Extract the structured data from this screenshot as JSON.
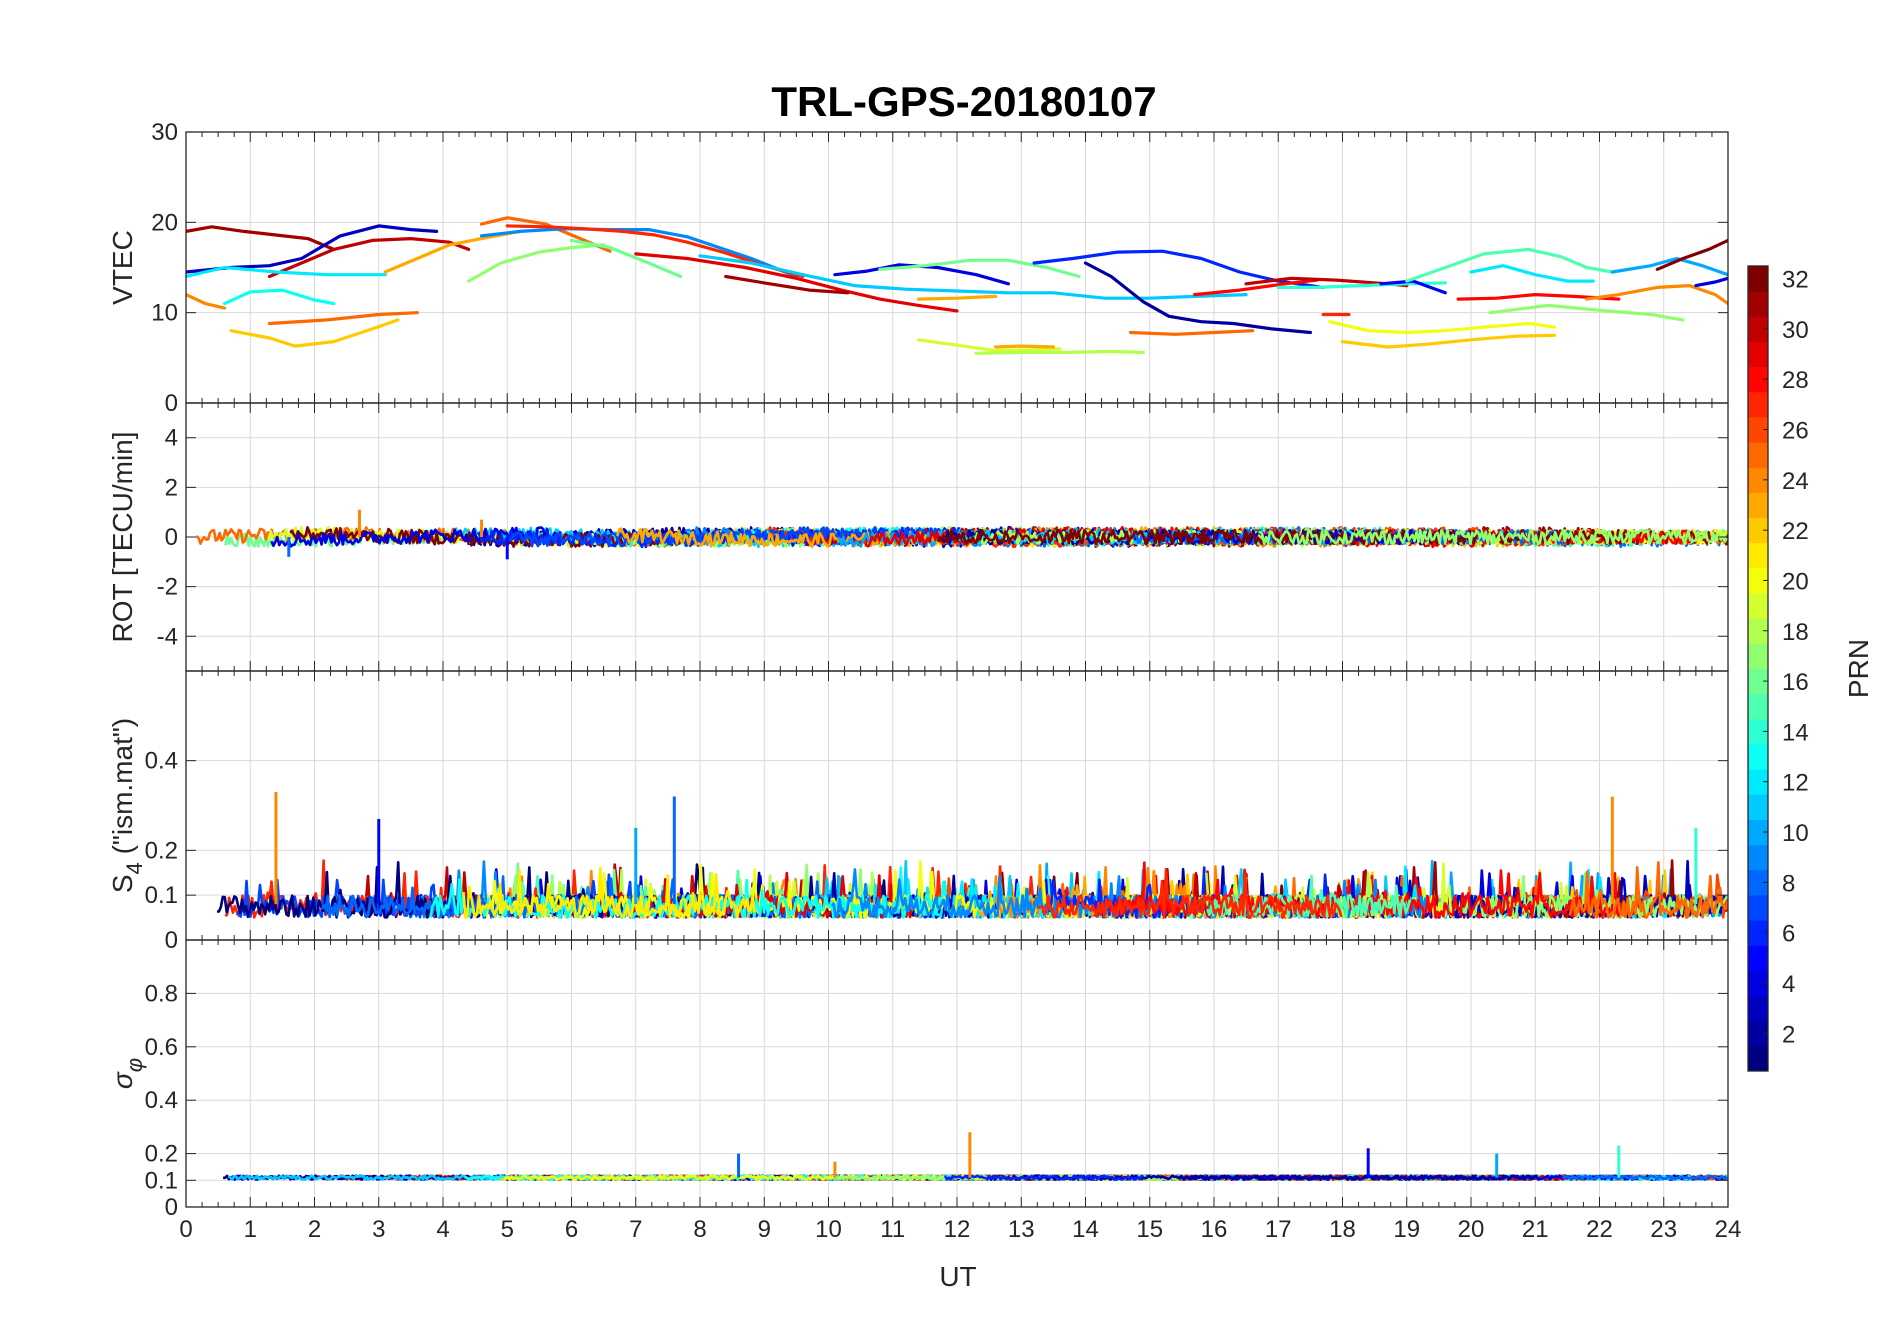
{
  "chart_data": {
    "title": "TRL-GPS-20180107",
    "xlabel": "UT",
    "xlim": [
      0,
      24
    ],
    "xticks": [
      0,
      1,
      2,
      3,
      4,
      5,
      6,
      7,
      8,
      9,
      10,
      11,
      12,
      13,
      14,
      15,
      16,
      17,
      18,
      19,
      20,
      21,
      22,
      23,
      24
    ],
    "panels": [
      {
        "id": "vtec",
        "type": "line",
        "ylabel": "VTEC",
        "ylim": [
          0,
          30
        ],
        "yticks": [
          0,
          10,
          20,
          30
        ],
        "series": [
          {
            "prn": 31,
            "x": [
              0,
              0.4,
              0.9,
              1.4,
              1.9,
              2.3
            ],
            "y": [
              19,
              19.5,
              19,
              18.6,
              18.2,
              17
            ]
          },
          {
            "prn": 30,
            "x": [
              1.3,
              1.8,
              2.3,
              2.9,
              3.5,
              4.1,
              4.4
            ],
            "y": [
              14,
              15.5,
              17,
              18,
              18.2,
              17.8,
              17
            ]
          },
          {
            "prn": 3,
            "x": [
              0,
              0.7,
              1.3,
              1.8,
              2.4,
              3.0,
              3.5,
              3.9
            ],
            "y": [
              14.5,
              15,
              15.2,
              16,
              18.5,
              19.6,
              19.2,
              19
            ]
          },
          {
            "prn": 12,
            "x": [
              0,
              0.6,
              1.4,
              2.2,
              3.1
            ],
            "y": [
              14,
              15,
              14.5,
              14.2,
              14.2
            ]
          },
          {
            "prn": 13,
            "x": [
              0.6,
              1.0,
              1.5,
              2.0,
              2.3
            ],
            "y": [
              11,
              12.3,
              12.5,
              11.4,
              11
            ]
          },
          {
            "prn": 24,
            "x": [
              0,
              0.3,
              0.6
            ],
            "y": [
              12,
              11,
              10.5
            ]
          },
          {
            "prn": 22,
            "x": [
              0.7,
              1.3,
              1.7,
              2.3,
              2.9,
              3.3
            ],
            "y": [
              8,
              7.2,
              6.3,
              6.8,
              8.2,
              9.2
            ]
          },
          {
            "prn": 25,
            "x": [
              1.3,
              2.2,
              3.0,
              3.6
            ],
            "y": [
              8.8,
              9.2,
              9.8,
              10
            ]
          },
          {
            "prn": 23,
            "x": [
              3.1,
              3.6,
              4.1,
              4.6,
              5.2
            ],
            "y": [
              14.5,
              16,
              17.5,
              18.2,
              19
            ]
          },
          {
            "prn": 17,
            "x": [
              4.4,
              4.9,
              5.5,
              6.0,
              6.5
            ],
            "y": [
              13.5,
              15.5,
              16.7,
              17.2,
              17.5
            ]
          },
          {
            "prn": 25,
            "x": [
              4.6,
              5.0,
              5.6,
              6.2,
              6.6
            ],
            "y": [
              19.8,
              20.5,
              19.8,
              18,
              16.8
            ]
          },
          {
            "prn": 9,
            "x": [
              4.6,
              5.2,
              5.9,
              6.6,
              7.2,
              7.8,
              8.3,
              8.8,
              9.5
            ],
            "y": [
              18.5,
              19,
              19.3,
              19.2,
              19.2,
              18.4,
              17.2,
              16,
              14
            ]
          },
          {
            "prn": 27,
            "x": [
              5.0,
              5.6,
              6.2,
              6.8,
              7.3,
              7.8,
              8.4,
              9.0,
              9.6
            ],
            "y": [
              19.6,
              19.5,
              19.3,
              19,
              18.6,
              17.8,
              16.6,
              15.2,
              14
            ]
          },
          {
            "prn": 16,
            "x": [
              6.0,
              6.6,
              7.2,
              7.7
            ],
            "y": [
              18,
              17.2,
              15.5,
              14
            ]
          },
          {
            "prn": 29,
            "x": [
              7.0,
              7.8,
              8.7,
              9.5,
              10.2,
              10.8,
              11.4,
              12.0
            ],
            "y": [
              16.5,
              16,
              15,
              13.8,
              12.5,
              11.5,
              10.8,
              10.2
            ]
          },
          {
            "prn": 31,
            "x": [
              8.4,
              9.0,
              9.7,
              10.3
            ],
            "y": [
              14,
              13.3,
              12.5,
              12.2
            ]
          },
          {
            "prn": 11,
            "x": [
              8.0,
              8.8,
              9.6,
              10.4,
              11.2,
              12.0,
              12.8,
              13.5
            ],
            "y": [
              16.3,
              15.5,
              14.2,
              13,
              12.6,
              12.4,
              12.2,
              12.2
            ]
          },
          {
            "prn": 4,
            "x": [
              10.1,
              10.6,
              11.1,
              11.7,
              12.3,
              12.8
            ],
            "y": [
              14.2,
              14.6,
              15.3,
              15,
              14.2,
              13.2
            ]
          },
          {
            "prn": 16,
            "x": [
              10.8,
              11.5,
              12.2,
              12.8,
              13.4,
              13.9
            ],
            "y": [
              14.8,
              15.2,
              15.8,
              15.8,
              15,
              14
            ]
          },
          {
            "prn": 23,
            "x": [
              11.4,
              12.0,
              12.6
            ],
            "y": [
              11.5,
              11.6,
              11.8
            ]
          },
          {
            "prn": 19,
            "x": [
              11.4,
              11.9,
              12.6,
              13.2,
              13.6
            ],
            "y": [
              7,
              6.5,
              5.8,
              5.9,
              6
            ]
          },
          {
            "prn": 18,
            "x": [
              12.3,
              13.0,
              13.7,
              14.4,
              14.9
            ],
            "y": [
              5.5,
              5.6,
              5.6,
              5.7,
              5.6
            ]
          },
          {
            "prn": 23,
            "x": [
              12.6,
              13.0,
              13.5
            ],
            "y": [
              6.2,
              6.3,
              6.2
            ]
          },
          {
            "prn": 6,
            "x": [
              13.2,
              13.8,
              14.5,
              15.2,
              15.8,
              16.4,
              17.0,
              17.5,
              17.7
            ],
            "y": [
              15.5,
              16,
              16.7,
              16.8,
              16,
              14.5,
              13.5,
              13,
              12.8
            ]
          },
          {
            "prn": 11,
            "x": [
              13.5,
              14.3,
              15.0,
              15.7,
              16.5
            ],
            "y": [
              12.2,
              11.6,
              11.6,
              11.8,
              12
            ]
          },
          {
            "prn": 2,
            "x": [
              14.0,
              14.4,
              14.9,
              15.3,
              15.8,
              16.3,
              16.9,
              17.5
            ],
            "y": [
              15.5,
              14,
              11.2,
              9.6,
              9,
              8.8,
              8.2,
              7.8
            ]
          },
          {
            "prn": 25,
            "x": [
              14.7,
              15.4,
              16.0,
              16.6
            ],
            "y": [
              7.8,
              7.6,
              7.8,
              8
            ]
          },
          {
            "prn": 28,
            "x": [
              15.7,
              16.4,
              17.1,
              17.6
            ],
            "y": [
              12,
              12.5,
              13.2,
              13.6
            ]
          },
          {
            "prn": 30,
            "x": [
              16.5,
              17.2,
              17.9,
              18.7,
              19.0
            ],
            "y": [
              13.2,
              13.8,
              13.6,
              13.2,
              13.0
            ]
          },
          {
            "prn": 14,
            "x": [
              17.0,
              17.6,
              18.3,
              19.0,
              19.6
            ],
            "y": [
              12.8,
              12.8,
              13.0,
              13.2,
              13.3
            ]
          },
          {
            "prn": 27,
            "x": [
              17.7,
              18.1
            ],
            "y": [
              9.8,
              9.8
            ]
          },
          {
            "prn": 20,
            "x": [
              17.8,
              18.4,
              19.0,
              19.6,
              20.2,
              20.9,
              21.3
            ],
            "y": [
              9,
              8,
              7.8,
              8,
              8.4,
              8.8,
              8.4
            ]
          },
          {
            "prn": 22,
            "x": [
              18.0,
              18.7,
              19.3,
              20.0,
              20.7,
              21.3
            ],
            "y": [
              6.8,
              6.2,
              6.5,
              7,
              7.4,
              7.5
            ]
          },
          {
            "prn": 5,
            "x": [
              18.6,
              19.1,
              19.6
            ],
            "y": [
              13.2,
              13.5,
              12.2
            ]
          },
          {
            "prn": 15,
            "x": [
              19.0,
              19.6,
              20.2,
              20.9,
              21.4,
              21.8,
              22.2
            ],
            "y": [
              13.5,
              15,
              16.5,
              17,
              16.2,
              15,
              14.5
            ]
          },
          {
            "prn": 12,
            "x": [
              20.0,
              20.5,
              21.0,
              21.5,
              21.9
            ],
            "y": [
              14.5,
              15.2,
              14.2,
              13.5,
              13.5
            ]
          },
          {
            "prn": 17,
            "x": [
              20.3,
              21.2,
              22.1,
              22.8,
              23.3
            ],
            "y": [
              10,
              10.8,
              10.2,
              9.8,
              9.2
            ]
          },
          {
            "prn": 28,
            "x": [
              19.8,
              20.4,
              21.0,
              21.6,
              22.3
            ],
            "y": [
              11.5,
              11.6,
              12,
              11.8,
              11.5
            ]
          },
          {
            "prn": 24,
            "x": [
              21.8,
              22.3,
              22.9,
              23.4,
              23.8,
              24.0
            ],
            "y": [
              11.5,
              12,
              12.8,
              13,
              12,
              11
            ]
          },
          {
            "prn": 10,
            "x": [
              22.2,
              22.8,
              23.2,
              23.6,
              24.0
            ],
            "y": [
              14.5,
              15.2,
              16,
              15.2,
              14.2
            ]
          },
          {
            "prn": 32,
            "x": [
              22.9,
              23.3,
              23.7,
              24.0
            ],
            "y": [
              14.8,
              16,
              17,
              18
            ]
          },
          {
            "prn": 4,
            "x": [
              23.5,
              23.8,
              24.0
            ],
            "y": [
              13,
              13.4,
              13.8
            ]
          }
        ]
      },
      {
        "id": "rot",
        "type": "noise-line",
        "ylabel": "ROT [TECU/min]",
        "ylim": [
          -5.4,
          5.4
        ],
        "yticks": [
          -4,
          -2,
          0,
          2,
          4
        ],
        "baseline": 0,
        "spread": 0.35,
        "spikes": [
          {
            "x": 2.7,
            "y": 1.1
          },
          {
            "x": 1.6,
            "y": -0.8
          },
          {
            "x": 4.6,
            "y": 0.7
          },
          {
            "x": 5.0,
            "y": -0.9
          }
        ]
      },
      {
        "id": "s4",
        "type": "noise-line",
        "ylabel": "S4 (\"ism.mat\")",
        "ylabel_main": "S",
        "ylabel_sub": "4",
        "ylabel_tail": " (\"ism.mat\")",
        "ylim": [
          0,
          0.6
        ],
        "yticks": [
          0,
          0.1,
          0.2,
          0.4
        ],
        "baseline": 0.08,
        "spread": 0.05,
        "spikes": [
          {
            "x": 1.4,
            "y": 0.33
          },
          {
            "x": 7.6,
            "y": 0.32
          },
          {
            "x": 22.2,
            "y": 0.32
          },
          {
            "x": 3.0,
            "y": 0.27
          },
          {
            "x": 7.0,
            "y": 0.25
          },
          {
            "x": 23.5,
            "y": 0.25
          }
        ]
      },
      {
        "id": "sigphi",
        "type": "noise-line",
        "ylabel": "σφ",
        "ylabel_main": "σ",
        "ylabel_sub": "φ",
        "ylim": [
          0,
          1
        ],
        "yticks": [
          0,
          0.1,
          0.2,
          0.4,
          0.6,
          0.8
        ],
        "baseline": 0.11,
        "spread": 0.015,
        "spikes": [
          {
            "x": 12.2,
            "y": 0.28
          },
          {
            "x": 8.6,
            "y": 0.2
          },
          {
            "x": 10.1,
            "y": 0.17
          },
          {
            "x": 18.4,
            "y": 0.22
          },
          {
            "x": 20.4,
            "y": 0.2
          },
          {
            "x": 22.3,
            "y": 0.23
          }
        ]
      }
    ],
    "colorbar": {
      "label": "PRN",
      "min": 1,
      "max": 32,
      "ticks": [
        2,
        4,
        6,
        8,
        10,
        12,
        14,
        16,
        18,
        20,
        22,
        24,
        26,
        28,
        30,
        32
      ],
      "colormap": "jet"
    }
  }
}
